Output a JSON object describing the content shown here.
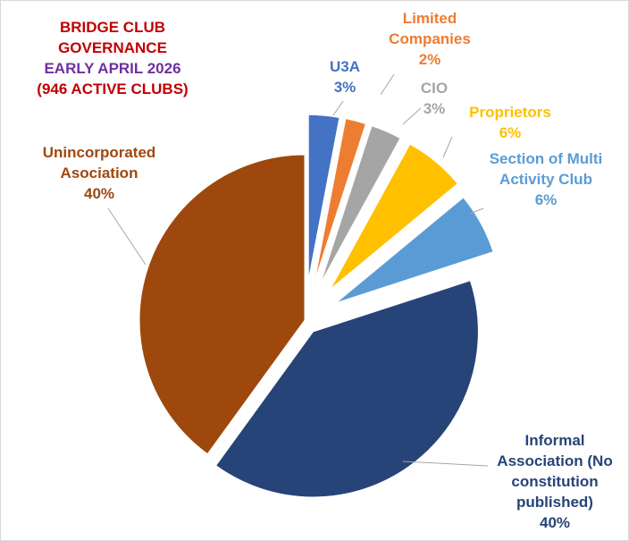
{
  "chart_data": {
    "type": "pie",
    "title_lines": [
      "BRIDGE  CLUB",
      "GOVERNANCE",
      "EARLY APRIL 2026",
      "(946 ACTIVE CLUBS)"
    ],
    "title_colors": [
      "#c00000",
      "#c00000",
      "#7030a0",
      "#c00000"
    ],
    "categories": [
      "U3A",
      "Limited Companies",
      "CIO",
      "Proprietors",
      "Section of Multi Activity Club",
      "Informal Association (No constitution published)",
      "Unincorporated Asociation"
    ],
    "values": [
      3,
      2,
      3,
      6,
      6,
      40,
      40
    ],
    "value_labels": [
      "3%",
      "2%",
      "3%",
      "6%",
      "6%",
      "40%",
      "40%"
    ],
    "colors": [
      "#4472c4",
      "#ed7d31",
      "#a5a5a5",
      "#ffc000",
      "#5b9bd5",
      "#264478",
      "#9e480e"
    ]
  }
}
